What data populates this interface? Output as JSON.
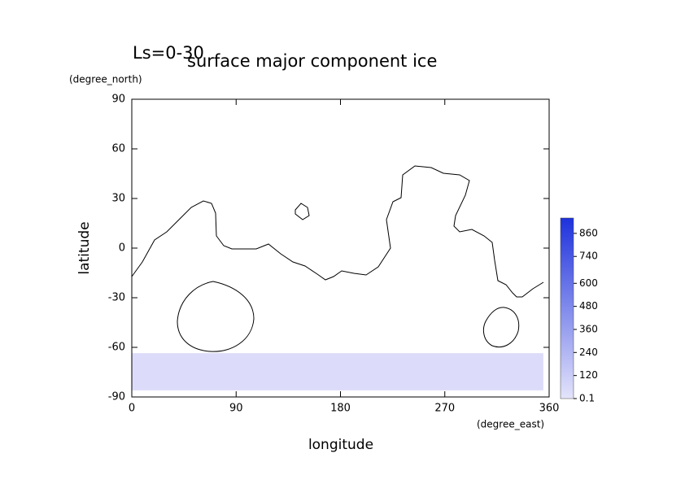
{
  "chart_data": {
    "type": "contour_map",
    "title": "surface major component ice",
    "subtitle": "Ls=0-30",
    "x_label": "longitude",
    "y_label": "latitude",
    "x_unit": "(degree_east)",
    "y_unit": "(degree_north)",
    "xlim": [
      0,
      360
    ],
    "ylim": [
      -90,
      90
    ],
    "xticks": [
      0,
      90,
      180,
      270,
      360
    ],
    "yticks": [
      -90,
      -60,
      -30,
      0,
      30,
      60,
      90
    ],
    "ice_region": {
      "lon_range": [
        0,
        355
      ],
      "lat_range": [
        -86,
        -63.5
      ],
      "color": "#dcdcfa"
    },
    "colorbar": {
      "lim": [
        0,
        940
      ],
      "ticks": [
        0.1,
        120,
        240,
        360,
        480,
        600,
        740,
        860
      ],
      "colors": [
        "#e4e4fb",
        "#1e32dc"
      ]
    }
  }
}
